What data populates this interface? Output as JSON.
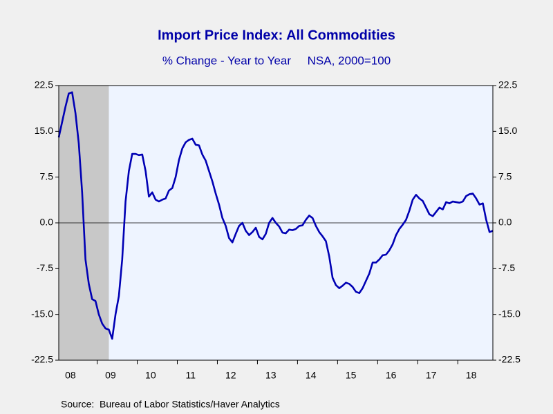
{
  "chart_data": {
    "type": "line",
    "title": "Import Price Index: All Commodities",
    "subtitle": "% Change - Year to Year     NSA, 2000=100",
    "source": "Source:  Bureau of Labor Statistics/Haver Analytics",
    "color": "#0000b4",
    "categories": [
      null,
      null,
      null,
      null,
      "08",
      null,
      null,
      null,
      null,
      null,
      null,
      null,
      null,
      null,
      null,
      null,
      "09",
      null,
      null,
      null,
      null,
      null,
      null,
      null,
      null,
      null,
      null,
      null,
      "10",
      null,
      null,
      null,
      null,
      null,
      null,
      null,
      null,
      null,
      null,
      null,
      "11",
      null,
      null,
      null,
      null,
      null,
      null,
      null,
      null,
      null,
      null,
      null,
      "12",
      null,
      null,
      null,
      null,
      null,
      null,
      null,
      null,
      null,
      null,
      null,
      "13",
      null,
      null,
      null,
      null,
      null,
      null,
      null,
      null,
      null,
      null,
      null,
      "14",
      null,
      null,
      null,
      null,
      null,
      null,
      null,
      null,
      null,
      null,
      null,
      "15",
      null,
      null,
      null,
      null,
      null,
      null,
      null,
      null,
      null,
      null,
      null,
      "16",
      null,
      null,
      null,
      null,
      null,
      null,
      null,
      null,
      null,
      null,
      null,
      "17",
      null,
      null,
      null,
      null,
      null,
      null,
      null,
      null,
      null,
      null,
      null,
      "18",
      null,
      null,
      null,
      null,
      null,
      null
    ],
    "values": [
      14,
      16.5,
      19,
      21.2,
      21.4,
      18,
      13,
      5,
      -6,
      -10,
      -12.5,
      -12.8,
      -15,
      -16.5,
      -17.3,
      -17.5,
      -19,
      -15,
      -12,
      -6,
      3.5,
      8.5,
      11.3,
      11.3,
      11.1,
      11.2,
      8.5,
      4.3,
      5,
      3.8,
      3.5,
      3.8,
      4,
      5.3,
      5.7,
      7.5,
      10.3,
      12.2,
      13.2,
      13.6,
      13.8,
      12.8,
      12.7,
      11.2,
      10.2,
      8.5,
      6.8,
      4.8,
      3,
      0.8,
      -0.5,
      -2.5,
      -3.2,
      -1.8,
      -0.5,
      0,
      -1.3,
      -2,
      -1.5,
      -0.8,
      -2.3,
      -2.7,
      -1.8,
      0,
      0.8,
      0,
      -0.6,
      -1.6,
      -1.7,
      -1.1,
      -1.2,
      -1,
      -0.5,
      -0.4,
      0.5,
      1.2,
      0.8,
      -0.5,
      -1.5,
      -2.2,
      -3,
      -5.5,
      -9,
      -10.2,
      -10.7,
      -10.3,
      -9.8,
      -10,
      -10.5,
      -11.3,
      -11.5,
      -10.7,
      -9.5,
      -8.3,
      -6.5,
      -6.5,
      -6,
      -5.3,
      -5.2,
      -4.5,
      -3.5,
      -2,
      -1,
      -0.3,
      0.5,
      2,
      3.8,
      4.6,
      4,
      3.6,
      2.5,
      1.4,
      1.1,
      1.8,
      2.5,
      2.2,
      3.4,
      3.2,
      3.5,
      3.4,
      3.3,
      3.5,
      4.4,
      4.7,
      4.8,
      4,
      3,
      3.2,
      0.5,
      -1.5,
      -1.3
    ],
    "ylim": [
      -22.5,
      22.5
    ],
    "yticks": [
      22.5,
      {
        "value": 15,
        "label": "15.0"
      },
      7.5,
      {
        "value": 0,
        "label": "0.0"
      },
      -7.5,
      {
        "value": -15,
        "label": "-15.0"
      },
      -22.5
    ],
    "shading": {
      "start": 0,
      "end": 15,
      "color": "#c8c8c8"
    },
    "plot_background": "#eef4ff"
  }
}
